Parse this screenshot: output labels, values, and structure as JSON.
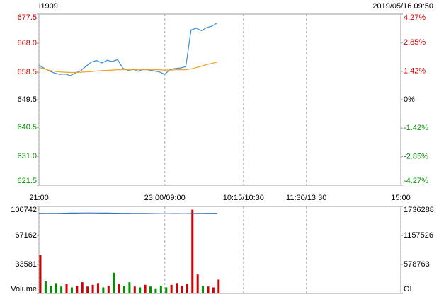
{
  "chart_data": [
    {
      "type": "line",
      "title": "i1909",
      "subtitle": "2019/05/16 09:50",
      "x": [
        0,
        5,
        10,
        15,
        20,
        25,
        30,
        35,
        40,
        45,
        50,
        55,
        60,
        65,
        70,
        75,
        80,
        85,
        90,
        95,
        100,
        105,
        110,
        115,
        120,
        125,
        130,
        135,
        140,
        145,
        150,
        155,
        160,
        165,
        170
      ],
      "xlim": [
        0,
        345
      ],
      "xticks": [
        {
          "value": 0,
          "label": "21:00"
        },
        {
          "value": 120,
          "label": "23:00/09:00"
        },
        {
          "value": 195,
          "label": "10:15/10:30"
        },
        {
          "value": 255,
          "label": "11:30/13:30"
        },
        {
          "value": 345,
          "label": "15:00"
        }
      ],
      "ylim": [
        621.5,
        677.5
      ],
      "yticks": [
        677.5,
        {
          "value": 668,
          "label": "668.0"
        },
        658.5,
        649.5,
        640.5,
        {
          "value": 631,
          "label": "631.0"
        },
        621.5
      ],
      "y2lim": [
        -4.27,
        4.27
      ],
      "y2ticks": [
        {
          "value": 4.27,
          "label": "4.27%"
        },
        {
          "value": 2.85,
          "label": "2.85%"
        },
        {
          "value": 1.42,
          "label": "1.42%"
        },
        {
          "value": 0,
          "label": "0%"
        },
        {
          "value": -1.42,
          "label": "-1.42%"
        },
        {
          "value": -2.85,
          "label": "-2.85%"
        },
        {
          "value": -4.27,
          "label": "-4.27%"
        }
      ],
      "up_color": "#d00000",
      "down_color": "#009000",
      "flat_color": "#000000",
      "series": [
        {
          "color": "#3b8fd9",
          "values": [
            660.8,
            659.8,
            658.9,
            658.2,
            657.8,
            657.9,
            657.4,
            658.3,
            659.0,
            660.5,
            661.8,
            662.3,
            661.5,
            662.4,
            662.0,
            662.6,
            659.8,
            659.1,
            659.4,
            658.8,
            659.6,
            659.2,
            658.9,
            658.6,
            657.8,
            659.4,
            659.7,
            659.9,
            660.3,
            672.3,
            672.9,
            672.1,
            673.1,
            673.6,
            674.6
          ]
        },
        {
          "color": "#f0a020",
          "values": [
            660.1,
            659.6,
            659.1,
            658.8,
            658.6,
            658.5,
            658.4,
            658.4,
            658.5,
            658.6,
            658.7,
            658.9,
            659.0,
            659.1,
            659.2,
            659.3,
            659.3,
            659.3,
            659.3,
            659.3,
            659.3,
            659.3,
            659.3,
            659.3,
            659.2,
            659.2,
            659.3,
            659.3,
            659.3,
            659.6,
            660.0,
            660.5,
            661.0,
            661.4,
            661.8
          ]
        }
      ]
    },
    {
      "type": "bar",
      "x": [
        0,
        5,
        10,
        15,
        20,
        25,
        30,
        35,
        40,
        45,
        50,
        55,
        60,
        65,
        70,
        75,
        80,
        85,
        90,
        95,
        100,
        105,
        110,
        115,
        120,
        125,
        130,
        135,
        140,
        145,
        150,
        155,
        160,
        165,
        170
      ],
      "xlim": [
        0,
        345
      ],
      "ylim": [
        0,
        100742
      ],
      "yticks": [
        100742,
        67162,
        33581,
        {
          "value": 0,
          "label": "Volume"
        }
      ],
      "y2lim": [
        0,
        1736288
      ],
      "y2ticks": [
        1736288,
        1157526,
        578763,
        {
          "value": 0,
          "label": "OI"
        }
      ],
      "up_color": "#d00000",
      "down_color": "#009000",
      "values": [
        45000,
        14000,
        9000,
        12000,
        8000,
        11000,
        7000,
        9000,
        13000,
        8000,
        10000,
        12000,
        7000,
        9000,
        24000,
        11000,
        9000,
        13000,
        8000,
        7000,
        10000,
        8000,
        6000,
        9000,
        7000,
        10000,
        12000,
        9000,
        11000,
        97000,
        22000,
        9000,
        8000,
        7000,
        16000
      ],
      "series": [
        {
          "color": "#3b73b9",
          "axis": "y2",
          "values": [
            1600000,
            1598000,
            1597000,
            1598000,
            1599000,
            1601000,
            1603000,
            1604000,
            1605000,
            1606000,
            1606000,
            1605000,
            1604000,
            1603000,
            1602000,
            1601000,
            1600000,
            1599000,
            1598000,
            1597000,
            1596000,
            1595000,
            1594000,
            1593000,
            1592000,
            1593000,
            1594000,
            1593000,
            1592000,
            1595000,
            1597000,
            1598000,
            1599000,
            1599000,
            1600000
          ]
        }
      ]
    }
  ]
}
